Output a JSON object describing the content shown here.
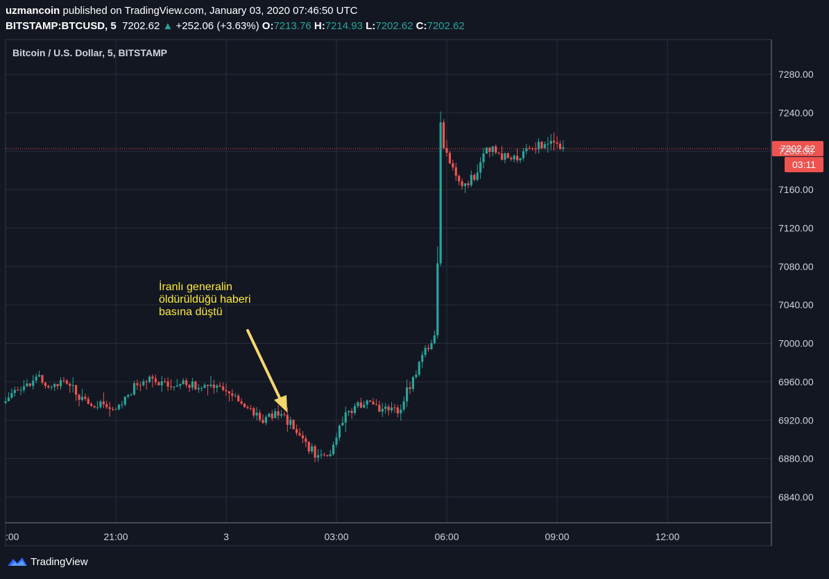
{
  "header": {
    "publisher": "uzmancoin",
    "published_text": "published on TradingView.com, January 03, 2020 07:46:50 UTC",
    "symbol": "BITSTAMP:BTCUSD, 5",
    "last": "7202.62",
    "change": "+252.06 (+3.63%)",
    "o_label": "O:",
    "o_value": "7213.76",
    "h_label": "H:",
    "h_value": "7214.93",
    "l_label": "L:",
    "l_value": "7202.62",
    "c_label": "C:",
    "c_value": "7202.62"
  },
  "chart_data": {
    "type": "candlestick",
    "title": "Bitcoin / U.S. Dollar, 5, BITSTAMP",
    "ylim": [
      6815,
      7320
    ],
    "y_ticks": [
      "7280.00",
      "7240.00",
      "7200.00",
      "7160.00",
      "7120.00",
      "7080.00",
      "7040.00",
      "7000.00",
      "6960.00",
      "6920.00",
      "6880.00",
      "6840.00"
    ],
    "y_tick_values": [
      7280,
      7240,
      7200,
      7160,
      7120,
      7080,
      7040,
      7000,
      6960,
      6920,
      6880,
      6840
    ],
    "x_ticks": [
      ":00",
      "21:00",
      "3",
      "03:00",
      "06:00",
      "09:00",
      "12:00"
    ],
    "x_tick_hours": [
      18,
      21,
      24,
      27,
      30,
      33,
      36
    ],
    "price_label": "7202.62",
    "time_label": "03:11",
    "annotation": "İranlı generalin öldürüldüğü haberi basına düştü",
    "colors": {
      "up": "#26a69a",
      "down": "#ef5350",
      "annotation": "#ffeb3b"
    },
    "anchors": [
      [
        18.0,
        6938
      ],
      [
        18.5,
        6955
      ],
      [
        19.0,
        6965
      ],
      [
        19.3,
        6950
      ],
      [
        19.7,
        6965
      ],
      [
        20.0,
        6948
      ],
      [
        20.4,
        6935
      ],
      [
        20.8,
        6935
      ],
      [
        21.0,
        6930
      ],
      [
        21.3,
        6940
      ],
      [
        21.6,
        6955
      ],
      [
        22.0,
        6962
      ],
      [
        22.5,
        6955
      ],
      [
        23.0,
        6958
      ],
      [
        23.5,
        6955
      ],
      [
        24.0,
        6950
      ],
      [
        24.3,
        6945
      ],
      [
        24.7,
        6935
      ],
      [
        25.0,
        6920
      ],
      [
        25.3,
        6925
      ],
      [
        25.6,
        6925
      ],
      [
        26.0,
        6910
      ],
      [
        26.2,
        6895
      ],
      [
        26.4,
        6890
      ],
      [
        26.6,
        6880
      ],
      [
        26.8,
        6880
      ],
      [
        27.0,
        6895
      ],
      [
        27.3,
        6925
      ],
      [
        27.7,
        6935
      ],
      [
        28.0,
        6938
      ],
      [
        28.4,
        6930
      ],
      [
        28.8,
        6930
      ],
      [
        29.0,
        6950
      ],
      [
        29.3,
        6975
      ],
      [
        29.5,
        6995
      ],
      [
        29.7,
        7002
      ],
      [
        29.8,
        7010
      ],
      [
        29.85,
        7120
      ],
      [
        29.9,
        7225
      ],
      [
        29.95,
        7240
      ],
      [
        30.0,
        7205
      ],
      [
        30.1,
        7195
      ],
      [
        30.25,
        7185
      ],
      [
        30.4,
        7170
      ],
      [
        30.6,
        7165
      ],
      [
        30.85,
        7175
      ],
      [
        31.0,
        7190
      ],
      [
        31.2,
        7205
      ],
      [
        31.5,
        7195
      ],
      [
        31.9,
        7192
      ],
      [
        32.2,
        7198
      ],
      [
        32.5,
        7205
      ],
      [
        32.8,
        7208
      ],
      [
        33.0,
        7212
      ],
      [
        33.2,
        7203
      ]
    ]
  }
}
